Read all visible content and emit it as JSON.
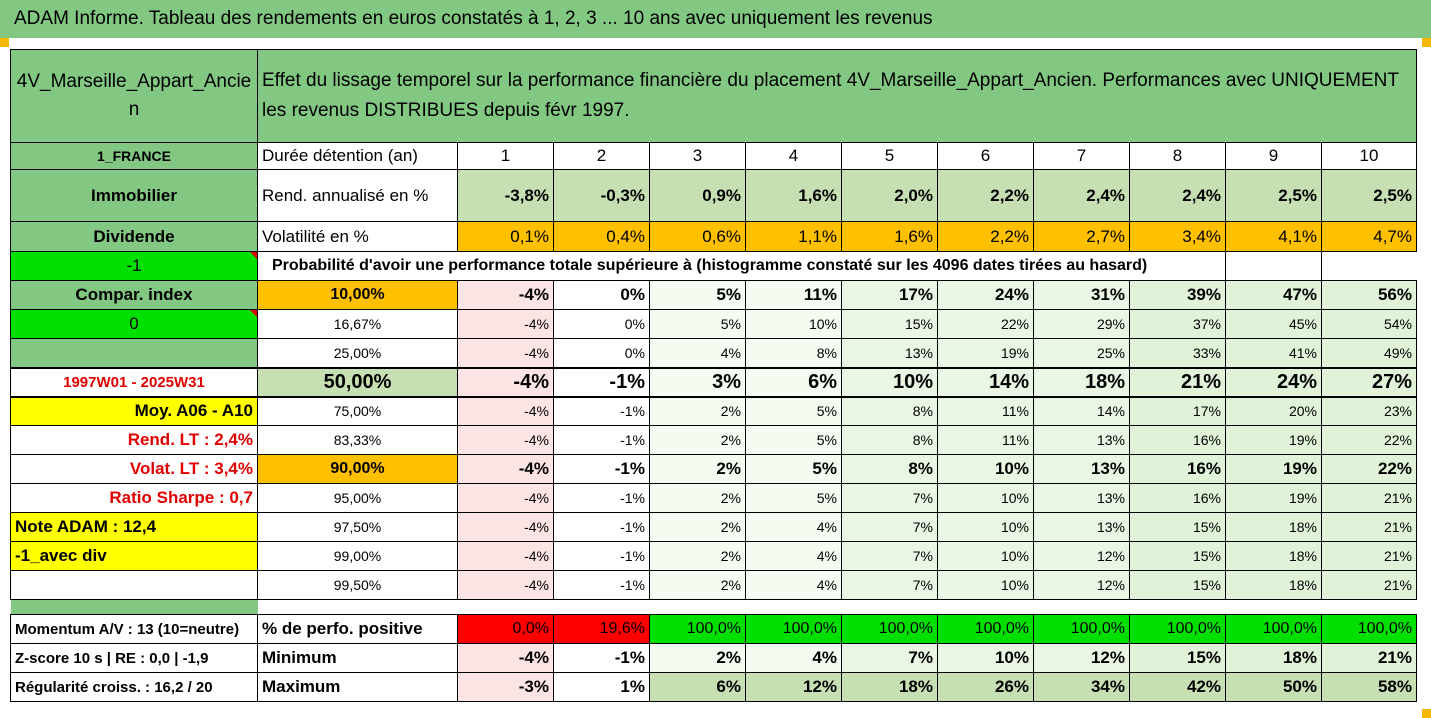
{
  "title": "ADAM Informe. Tableau des rendements en euros constatés à 1, 2, 3 ... 10 ans avec uniquement les revenus",
  "fund_name": "4V_Marseille_Appart_Ancien",
  "description": "Effet du lissage temporel sur la performance financière du placement 4V_Marseille_Appart_Ancien. Performances avec UNIQUEMENT les revenus DISTRIBUES depuis févr 1997.",
  "side": {
    "country": "1_FRANCE",
    "asset_class": "Immobilier",
    "dividend": "Dividende",
    "minus_one": "-1",
    "compar_index": "Compar. index",
    "zero": "0",
    "period": "1997W01 - 2025W31",
    "moy": "Moy. A06 - A10",
    "rend_lt": "Rend. LT :   2,4%",
    "volat_lt": "Volat. LT :   3,4%",
    "sharpe": "Ratio Sharpe :   0,7",
    "note": "Note ADAM : 12,4",
    "avec_div": "-1_avec div"
  },
  "header": {
    "label": "Durée détention (an)",
    "years": [
      "1",
      "2",
      "3",
      "4",
      "5",
      "6",
      "7",
      "8",
      "9",
      "10"
    ]
  },
  "rend": {
    "label": "Rend. annualisé en %",
    "values": [
      "-3,8%",
      "-0,3%",
      "0,9%",
      "1,6%",
      "2,0%",
      "2,2%",
      "2,4%",
      "2,4%",
      "2,5%",
      "2,5%"
    ]
  },
  "volat": {
    "label": "Volatilité en %",
    "values": [
      "0,1%",
      "0,4%",
      "0,6%",
      "1,1%",
      "1,6%",
      "2,2%",
      "2,7%",
      "3,4%",
      "4,1%",
      "4,7%"
    ]
  },
  "proba_label": "Probabilité d'avoir une performance totale supérieure à (histogramme constaté sur les 4096 dates tirées au hasard)",
  "percentiles": [
    {
      "p": "10,00%",
      "values": [
        "-4%",
        "0%",
        "5%",
        "11%",
        "17%",
        "24%",
        "31%",
        "39%",
        "47%",
        "56%"
      ]
    },
    {
      "p": "16,67%",
      "values": [
        "-4%",
        "0%",
        "5%",
        "10%",
        "15%",
        "22%",
        "29%",
        "37%",
        "45%",
        "54%"
      ]
    },
    {
      "p": "25,00%",
      "values": [
        "-4%",
        "0%",
        "4%",
        "8%",
        "13%",
        "19%",
        "25%",
        "33%",
        "41%",
        "49%"
      ]
    },
    {
      "p": "50,00%",
      "values": [
        "-4%",
        "-1%",
        "3%",
        "6%",
        "10%",
        "14%",
        "18%",
        "21%",
        "24%",
        "27%"
      ]
    },
    {
      "p": "75,00%",
      "values": [
        "-4%",
        "-1%",
        "2%",
        "5%",
        "8%",
        "11%",
        "14%",
        "17%",
        "20%",
        "23%"
      ]
    },
    {
      "p": "83,33%",
      "values": [
        "-4%",
        "-1%",
        "2%",
        "5%",
        "8%",
        "11%",
        "13%",
        "16%",
        "19%",
        "22%"
      ]
    },
    {
      "p": "90,00%",
      "values": [
        "-4%",
        "-1%",
        "2%",
        "5%",
        "8%",
        "10%",
        "13%",
        "16%",
        "19%",
        "22%"
      ]
    },
    {
      "p": "95,00%",
      "values": [
        "-4%",
        "-1%",
        "2%",
        "5%",
        "7%",
        "10%",
        "13%",
        "16%",
        "19%",
        "21%"
      ]
    },
    {
      "p": "97,50%",
      "values": [
        "-4%",
        "-1%",
        "2%",
        "4%",
        "7%",
        "10%",
        "13%",
        "15%",
        "18%",
        "21%"
      ]
    },
    {
      "p": "99,00%",
      "values": [
        "-4%",
        "-1%",
        "2%",
        "4%",
        "7%",
        "10%",
        "12%",
        "15%",
        "18%",
        "21%"
      ]
    },
    {
      "p": "99,50%",
      "values": [
        "-4%",
        "-1%",
        "2%",
        "4%",
        "7%",
        "10%",
        "12%",
        "15%",
        "18%",
        "21%"
      ]
    }
  ],
  "bottom": {
    "momentum": "Momentum A/V : 13 (10=neutre)",
    "zscore": "Z-score 10 s  | RE : 0,0  | -1,9",
    "regularite": "Régularité croiss. : 16,2 / 20",
    "positive_label": "% de perfo. positive",
    "positive": [
      "0,0%",
      "19,6%",
      "100,0%",
      "100,0%",
      "100,0%",
      "100,0%",
      "100,0%",
      "100,0%",
      "100,0%",
      "100,0%"
    ],
    "min_label": "Minimum",
    "minimum": [
      "-4%",
      "-1%",
      "2%",
      "4%",
      "7%",
      "10%",
      "12%",
      "15%",
      "18%",
      "21%"
    ],
    "max_label": "Maximum",
    "maximum": [
      "-3%",
      "1%",
      "6%",
      "12%",
      "18%",
      "26%",
      "34%",
      "42%",
      "50%",
      "58%"
    ]
  },
  "colors": {
    "green": "#82c882",
    "orange": "#ffc000",
    "bright_green": "#00e000",
    "red": "#ff0000",
    "yellow": "#ffff00"
  }
}
